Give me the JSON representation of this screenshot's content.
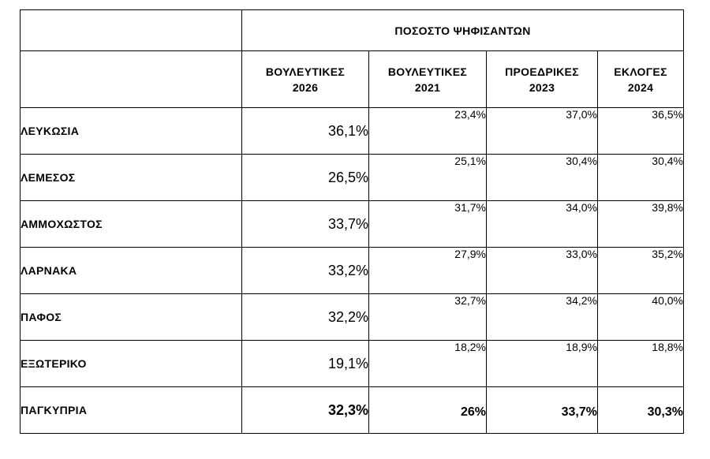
{
  "table": {
    "super_header": "ΠΟΣΟΣΤΟ ΨΗΦΙΣΑΝΤΩΝ",
    "columns": [
      {
        "line1": "ΒΟΥΛΕΥΤΙΚΕΣ",
        "line2": "2026"
      },
      {
        "line1": "ΒΟΥΛΕΥΤΙΚΕΣ",
        "line2": "2021"
      },
      {
        "line1": "ΠΡΟΕΔΡΙΚΕΣ",
        "line2": "2023"
      },
      {
        "line1": "ΕΚΛΟΓΕΣ",
        "line2": "2024"
      }
    ],
    "rows": [
      {
        "region": "ΛΕΥΚΩΣΙΑ",
        "values": [
          "36,1%",
          "23,4%",
          "37,0%",
          "36,5%"
        ]
      },
      {
        "region": "ΛΕΜΕΣΟΣ",
        "values": [
          "26,5%",
          "25,1%",
          "30,4%",
          "30,4%"
        ]
      },
      {
        "region": "ΑΜΜΟΧΩΣΤΟΣ",
        "values": [
          "33,7%",
          "31,7%",
          "34,0%",
          "39,8%"
        ]
      },
      {
        "region": "ΛΑΡΝΑΚΑ",
        "values": [
          "33,2%",
          "27,9%",
          "33,0%",
          "35,2%"
        ]
      },
      {
        "region": "ΠΑΦΟΣ",
        "values": [
          "32,2%",
          "32,7%",
          "34,2%",
          "40,0%"
        ]
      },
      {
        "region": "ΕΞΩΤΕΡΙΚΟ",
        "values": [
          "19,1%",
          "18,2%",
          "18,9%",
          "18,8%"
        ]
      }
    ],
    "total": {
      "region": "ΠΑΓΚΥΠΡΙΑ",
      "values": [
        "32,3%",
        "26%",
        "33,7%",
        "30,3%"
      ]
    }
  }
}
